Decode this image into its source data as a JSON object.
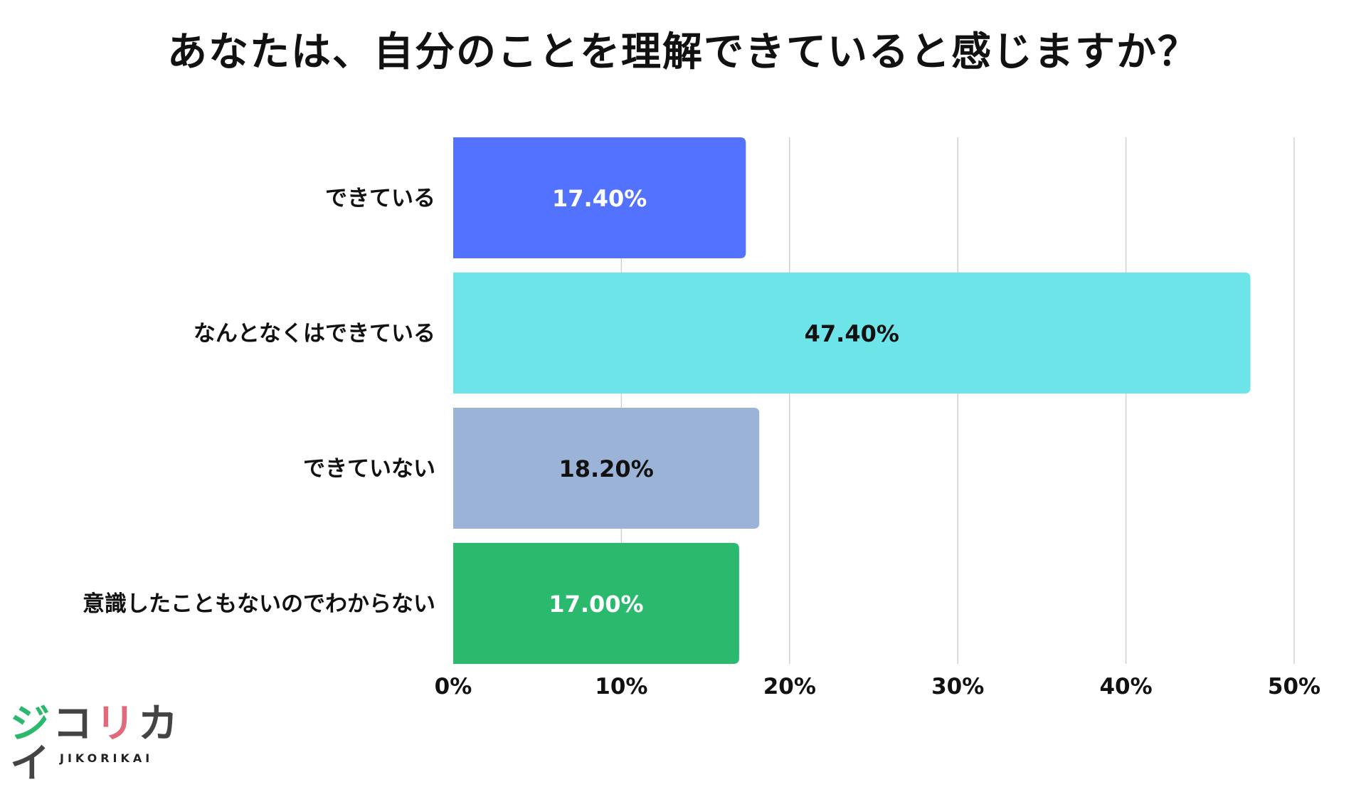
{
  "title": "あなたは、自分のことを理解できていると感じますか？",
  "chart_data": {
    "type": "bar",
    "orientation": "horizontal",
    "title": "あなたは、自分のことを理解できていると感じますか？",
    "categories": [
      "できている",
      "なんとなくはできている",
      "できていない",
      "意識したこともないのでわからない"
    ],
    "values": [
      17.4,
      47.4,
      18.2,
      17.0
    ],
    "value_labels": [
      "17.40%",
      "47.40%",
      "18.20%",
      "17.00%"
    ],
    "colors": [
      "#5272ff",
      "#6ce4e8",
      "#9bb3d6",
      "#2bb96d"
    ],
    "label_colors": [
      "#ffffff",
      "#111111",
      "#111111",
      "#ffffff"
    ],
    "xlim": [
      0,
      50
    ],
    "x_ticks": [
      0,
      10,
      20,
      30,
      40,
      50
    ],
    "x_tick_labels": [
      "0%",
      "10%",
      "20%",
      "30%",
      "40%",
      "50%"
    ],
    "grid": true,
    "xlabel": "",
    "ylabel": ""
  },
  "logo": {
    "chars": [
      "ジ",
      "コ",
      "リ",
      "カ",
      "イ"
    ],
    "char_colors": [
      "#2bb96d",
      "#444444",
      "#e06a7a",
      "#444444",
      "#444444"
    ],
    "accent_colors": [
      "#2bb96d",
      "#e06a7a",
      "#5272ff",
      "#e8b93a"
    ],
    "subtext": "JIKORIKAI"
  }
}
